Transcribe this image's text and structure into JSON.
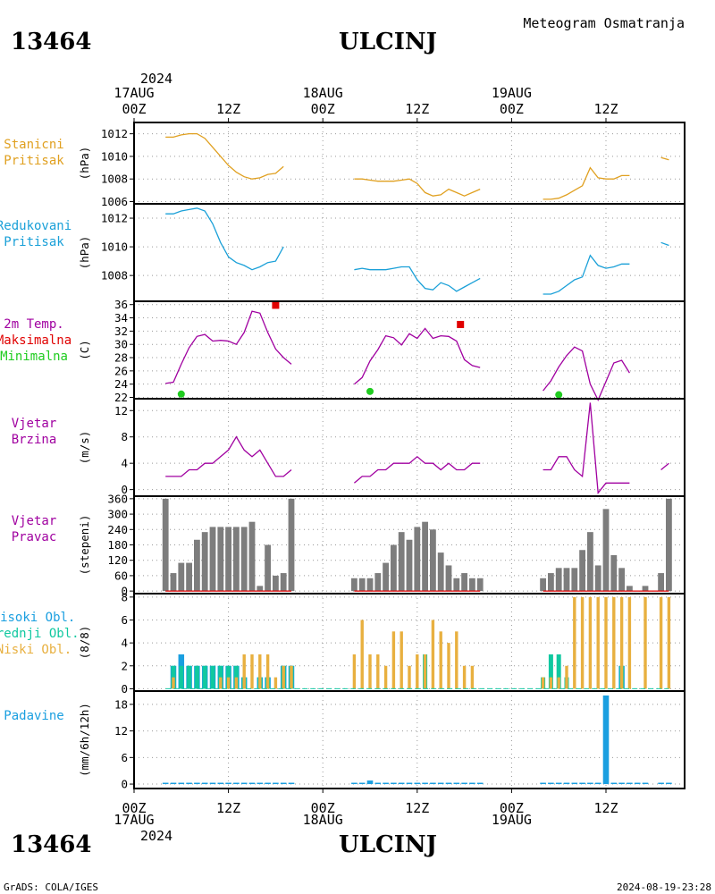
{
  "header": {
    "station_id": "13464",
    "station_name": "ULCINJ",
    "product": "Meteogram Osmatranja",
    "year": "2024"
  },
  "footer": {
    "station_id": "13464",
    "station_name": "ULCINJ",
    "credit": "GrADS: COLA/IGES",
    "timestamp": "2024-08-19-23:28"
  },
  "time_axis": {
    "start_hour": 0,
    "end_hour": 70,
    "ticks": [
      {
        "hour": 0,
        "hour_label": "00Z",
        "date_label": "17AUG"
      },
      {
        "hour": 12,
        "hour_label": "12Z",
        "date_label": ""
      },
      {
        "hour": 24,
        "hour_label": "00Z",
        "date_label": "18AUG"
      },
      {
        "hour": 36,
        "hour_label": "12Z",
        "date_label": ""
      },
      {
        "hour": 48,
        "hour_label": "00Z",
        "date_label": "19AUG"
      },
      {
        "hour": 60,
        "hour_label": "12Z",
        "date_label": ""
      }
    ]
  },
  "colors": {
    "station_pressure": "#e0a020",
    "reduced_pressure": "#1aa0d8",
    "temperature": "#a000a0",
    "maximum": "#e00000",
    "minimum": "#20cc20",
    "wind": "#a000a0",
    "wind_dir_bar": "#7d7d7d",
    "high_clouds": "#1a9fe0",
    "mid_clouds": "#10c8a0",
    "low_clouds": "#e8b040",
    "precip": "#1a9fe0"
  },
  "chart_data": [
    {
      "type": "line",
      "panel": "station_pressure",
      "labels": [
        "Stanicni",
        "Pritisak"
      ],
      "ylabel": "(hPa)",
      "ylim": [
        1005.8,
        1013.0
      ],
      "yticks": [
        1006,
        1008,
        1010,
        1012
      ],
      "series": [
        {
          "x": [
            4,
            5,
            6,
            7,
            8,
            9,
            10,
            11,
            12,
            13,
            14,
            15,
            16,
            17,
            18,
            19,
            20
          ],
          "y": [
            1011.7,
            1011.7,
            1011.9,
            1012.0,
            1012.0,
            1011.6,
            1010.8,
            1010.0,
            1009.2,
            1008.6,
            1008.2,
            1008.0,
            1008.1,
            1008.4,
            1008.5,
            1009.1,
            null
          ]
        },
        {
          "x": [
            28,
            29,
            30,
            31,
            32,
            33,
            34,
            35,
            36,
            37,
            38,
            39,
            40,
            41,
            42,
            43,
            44
          ],
          "y": [
            1008.0,
            1008.0,
            1007.9,
            1007.8,
            1007.8,
            1007.8,
            1007.9,
            1008.0,
            1007.6,
            1006.8,
            1006.5,
            1006.6,
            1007.1,
            1006.8,
            1006.5,
            1006.8,
            1007.1
          ]
        },
        {
          "x": [
            52,
            53,
            54,
            55,
            56,
            57,
            58,
            59,
            60,
            61,
            62,
            63,
            64
          ],
          "y": [
            1006.2,
            1006.2,
            1006.3,
            1006.6,
            1007.0,
            1007.4,
            1009.0,
            1008.1,
            1008.0,
            1008.0,
            1008.3,
            1008.3,
            null
          ]
        },
        {
          "x": [
            67,
            68
          ],
          "y": [
            1009.9,
            1009.7
          ]
        }
      ]
    },
    {
      "type": "line",
      "panel": "reduced_pressure",
      "labels": [
        "Redukovani",
        "Pritisak"
      ],
      "ylabel": "(hPa)",
      "ylim": [
        1006.2,
        1013.0
      ],
      "yticks": [
        1008,
        1010,
        1012
      ],
      "series": [
        {
          "x": [
            4,
            5,
            6,
            7,
            8,
            9,
            10,
            11,
            12,
            13,
            14,
            15,
            16,
            17,
            18,
            19,
            20
          ],
          "y": [
            1012.3,
            1012.3,
            1012.5,
            1012.6,
            1012.7,
            1012.5,
            1011.6,
            1010.3,
            1009.3,
            1008.9,
            1008.7,
            1008.4,
            1008.6,
            1008.9,
            1009.0,
            1010.0,
            null
          ]
        },
        {
          "x": [
            28,
            29,
            30,
            31,
            32,
            33,
            34,
            35,
            36,
            37,
            38,
            39,
            40,
            41,
            42,
            43,
            44
          ],
          "y": [
            1008.4,
            1008.5,
            1008.4,
            1008.4,
            1008.4,
            1008.5,
            1008.6,
            1008.6,
            1007.7,
            1007.1,
            1007.0,
            1007.5,
            1007.3,
            1006.9,
            1007.2,
            1007.5,
            1007.8
          ]
        },
        {
          "x": [
            52,
            53,
            54,
            55,
            56,
            57,
            58,
            59,
            60,
            61,
            62,
            63,
            64
          ],
          "y": [
            1006.7,
            1006.7,
            1006.9,
            1007.3,
            1007.7,
            1007.9,
            1009.4,
            1008.7,
            1008.5,
            1008.6,
            1008.8,
            1008.8,
            null
          ]
        },
        {
          "x": [
            67,
            68
          ],
          "y": [
            1010.3,
            1010.1
          ]
        }
      ]
    },
    {
      "type": "line",
      "panel": "temperature",
      "labels": [
        "2m Temp.",
        "Maksimalna",
        "Minimalna"
      ],
      "ylabel": "(C)",
      "ylim": [
        21.8,
        36.5
      ],
      "yticks": [
        22,
        24,
        26,
        28,
        30,
        32,
        34,
        36
      ],
      "series": [
        {
          "x": [
            4,
            5,
            6,
            7,
            8,
            9,
            10,
            11,
            12,
            13,
            14,
            15,
            16,
            17,
            18,
            19,
            20
          ],
          "y": [
            24.1,
            24.3,
            27.0,
            29.5,
            31.2,
            31.5,
            30.5,
            30.6,
            30.5,
            30.0,
            31.8,
            35.0,
            34.7,
            31.8,
            29.3,
            28.0,
            27.0
          ]
        },
        {
          "x": [
            28,
            29,
            30,
            31,
            32,
            33,
            34,
            35,
            36,
            37,
            38,
            39,
            40,
            41,
            42,
            43,
            44
          ],
          "y": [
            24.0,
            25.0,
            27.5,
            29.2,
            31.3,
            31.0,
            29.9,
            31.6,
            30.9,
            32.4,
            30.9,
            31.3,
            31.2,
            30.5,
            27.7,
            26.8,
            26.5
          ]
        },
        {
          "x": [
            52,
            53,
            54,
            55,
            56,
            57,
            58,
            59,
            60,
            61,
            62,
            63,
            64
          ],
          "y": [
            23.0,
            24.5,
            26.6,
            28.3,
            29.6,
            29.0,
            24.0,
            21.6,
            24.4,
            27.2,
            27.6,
            25.7,
            null
          ]
        }
      ],
      "max_points": [
        {
          "x": 18,
          "y": 35.9
        },
        {
          "x": 41.5,
          "y": 33.0
        }
      ],
      "min_points": [
        {
          "x": 6,
          "y": 22.5
        },
        {
          "x": 30,
          "y": 22.9
        },
        {
          "x": 54,
          "y": 22.4
        }
      ]
    },
    {
      "type": "line",
      "panel": "wind_speed",
      "labels": [
        "Vjetar",
        "Brzina"
      ],
      "ylabel": "(m/s)",
      "ylim": [
        -1,
        13.8
      ],
      "yticks": [
        0,
        4,
        8,
        12
      ],
      "series": [
        {
          "x": [
            4,
            5,
            6,
            7,
            8,
            9,
            10,
            11,
            12,
            13,
            14,
            15,
            16,
            17,
            18,
            19,
            20
          ],
          "y": [
            2,
            2,
            2,
            3,
            3,
            4,
            4,
            5,
            6,
            8,
            6,
            5,
            6,
            4,
            2,
            2,
            3
          ]
        },
        {
          "x": [
            28,
            29,
            30,
            31,
            32,
            33,
            34,
            35,
            36,
            37,
            38,
            39,
            40,
            41,
            42,
            43,
            44
          ],
          "y": [
            1,
            2,
            2,
            3,
            3,
            4,
            4,
            4,
            5,
            4,
            4,
            3,
            4,
            3,
            3,
            4,
            4
          ]
        },
        {
          "x": [
            52,
            53,
            54,
            55,
            56,
            57,
            58,
            59,
            60,
            61,
            62,
            63,
            64
          ],
          "y": [
            3,
            3,
            5,
            5,
            3,
            2,
            13.2,
            -0.5,
            1,
            1,
            1,
            1,
            null
          ]
        },
        {
          "x": [
            67,
            68
          ],
          "y": [
            3,
            4
          ]
        }
      ]
    },
    {
      "type": "bar",
      "panel": "wind_direction",
      "labels": [
        "Vjetar",
        "Pravac"
      ],
      "ylabel": "(stepeni)",
      "ylim": [
        -10,
        370
      ],
      "yticks": [
        0,
        60,
        120,
        180,
        240,
        300,
        360
      ],
      "x": [
        4,
        5,
        6,
        7,
        8,
        9,
        10,
        11,
        12,
        13,
        14,
        15,
        16,
        17,
        18,
        19,
        20,
        28,
        29,
        30,
        31,
        32,
        33,
        34,
        35,
        36,
        37,
        38,
        39,
        40,
        41,
        42,
        43,
        44,
        52,
        53,
        54,
        55,
        56,
        57,
        58,
        59,
        60,
        61,
        62,
        63,
        65,
        67,
        68
      ],
      "values": [
        360,
        70,
        110,
        110,
        200,
        230,
        250,
        250,
        250,
        250,
        250,
        270,
        20,
        180,
        60,
        70,
        360,
        50,
        50,
        50,
        70,
        110,
        180,
        230,
        200,
        250,
        270,
        240,
        150,
        100,
        50,
        70,
        50,
        50,
        50,
        70,
        90,
        90,
        90,
        160,
        230,
        100,
        320,
        140,
        90,
        20,
        20,
        70,
        360
      ]
    },
    {
      "type": "bar",
      "panel": "clouds",
      "labels": [
        "Visoki Obl.",
        "Srednji Obl.",
        "Niski Obl."
      ],
      "ylabel": "(8/8)",
      "ylim": [
        -0.2,
        8.3
      ],
      "yticks": [
        0,
        2,
        4,
        6,
        8
      ],
      "x": [
        4,
        5,
        6,
        7,
        8,
        9,
        10,
        11,
        12,
        13,
        14,
        15,
        16,
        17,
        18,
        19,
        20,
        28,
        29,
        30,
        31,
        32,
        33,
        34,
        35,
        36,
        37,
        38,
        39,
        40,
        41,
        42,
        43,
        44,
        52,
        53,
        54,
        55,
        56,
        57,
        58,
        59,
        60,
        61,
        62,
        63,
        65,
        67,
        68
      ],
      "series": [
        {
          "name": "Visoki Obl.",
          "values": [
            0,
            2,
            3,
            2,
            2,
            2,
            2,
            2,
            2,
            2,
            1,
            0,
            1,
            1,
            0,
            2,
            2,
            0,
            0,
            0,
            0,
            0,
            0,
            0,
            0,
            0,
            0,
            0,
            0,
            0,
            0,
            0,
            0,
            0,
            0,
            0,
            0,
            0,
            0,
            0,
            0,
            0,
            0,
            0,
            2,
            0,
            0,
            0,
            0
          ]
        },
        {
          "name": "Srednji Obl.",
          "values": [
            0,
            2,
            2,
            2,
            2,
            2,
            2,
            2,
            2,
            2,
            1,
            0,
            1,
            1,
            0,
            2,
            2,
            0,
            0,
            0,
            0,
            0,
            0,
            0,
            0,
            0,
            3,
            0,
            0,
            0,
            0,
            0,
            0,
            0,
            1,
            3,
            3,
            1,
            0,
            0,
            0,
            0,
            0,
            0,
            2,
            0,
            0,
            0,
            0
          ]
        },
        {
          "name": "Niski Obl.",
          "values": [
            0,
            1,
            0,
            0,
            0,
            0,
            0,
            1,
            1,
            1,
            3,
            3,
            3,
            3,
            1,
            2,
            2,
            3,
            6,
            3,
            3,
            2,
            5,
            5,
            2,
            3,
            3,
            6,
            5,
            4,
            5,
            2,
            2,
            0,
            1,
            1,
            1,
            2,
            8,
            8,
            8,
            8,
            8,
            8,
            8,
            8,
            8,
            8,
            8
          ]
        }
      ]
    },
    {
      "type": "bar",
      "panel": "precipitation",
      "labels": [
        "Padavine"
      ],
      "ylabel": "(mm/6h/12h)",
      "ylim": [
        -1,
        21
      ],
      "yticks": [
        0,
        6,
        12,
        18
      ],
      "x": [
        4,
        5,
        6,
        7,
        8,
        9,
        10,
        11,
        12,
        13,
        14,
        15,
        16,
        17,
        18,
        19,
        20,
        28,
        29,
        30,
        31,
        32,
        33,
        34,
        35,
        36,
        37,
        38,
        39,
        40,
        41,
        42,
        43,
        44,
        52,
        53,
        54,
        55,
        56,
        57,
        58,
        59,
        60,
        61,
        62,
        63,
        64,
        65,
        67,
        68
      ],
      "values": [
        0.2,
        0.2,
        0.2,
        0.2,
        0.2,
        0.2,
        0.2,
        0.2,
        0.2,
        0.2,
        0.2,
        0.2,
        0.2,
        0.2,
        0.2,
        0.2,
        0.2,
        0.2,
        0.2,
        0.8,
        0.2,
        0.2,
        0.2,
        0.2,
        0.2,
        0.2,
        0.2,
        0.2,
        0.2,
        0.2,
        0.2,
        0.2,
        0.2,
        0.2,
        0.2,
        0.2,
        0.2,
        0.2,
        0.2,
        0.2,
        0.2,
        0.2,
        20,
        0.2,
        0.2,
        0.2,
        0.2,
        0.2,
        0.2,
        0.2
      ]
    }
  ]
}
